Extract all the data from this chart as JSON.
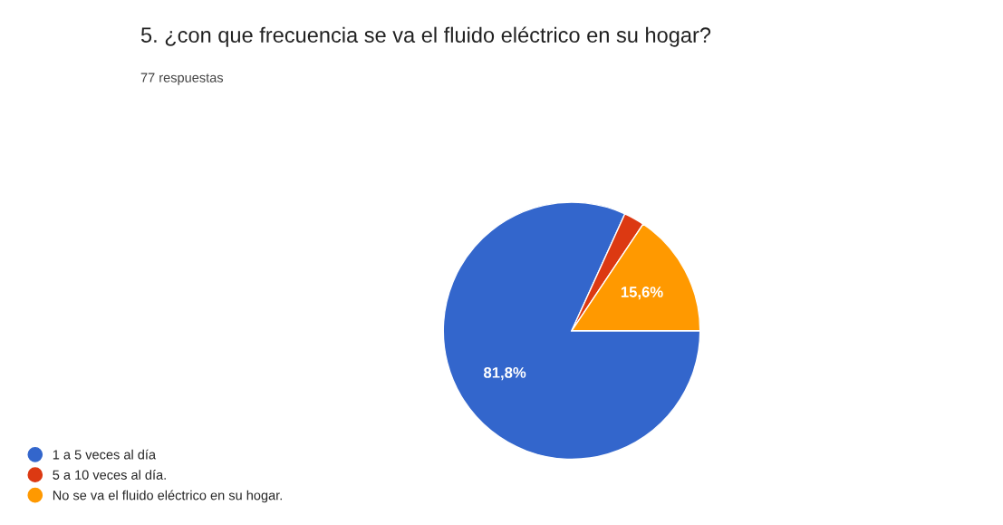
{
  "chart_data": {
    "type": "pie",
    "title": "5. ¿con que frecuencia se va el fluido eléctrico en su hogar?",
    "subtitle": "77 respuestas",
    "categories": [
      "1 a 5 veces al día",
      "5 a 10 veces al día.",
      "No se va el fluido eléctrico en su hogar."
    ],
    "values": [
      81.8,
      2.6,
      15.6
    ],
    "colors": [
      "#3366cc",
      "#dc3912",
      "#ff9900"
    ],
    "value_labels": [
      "81,8%",
      null,
      "15,6%"
    ],
    "legend": "bottom left"
  }
}
